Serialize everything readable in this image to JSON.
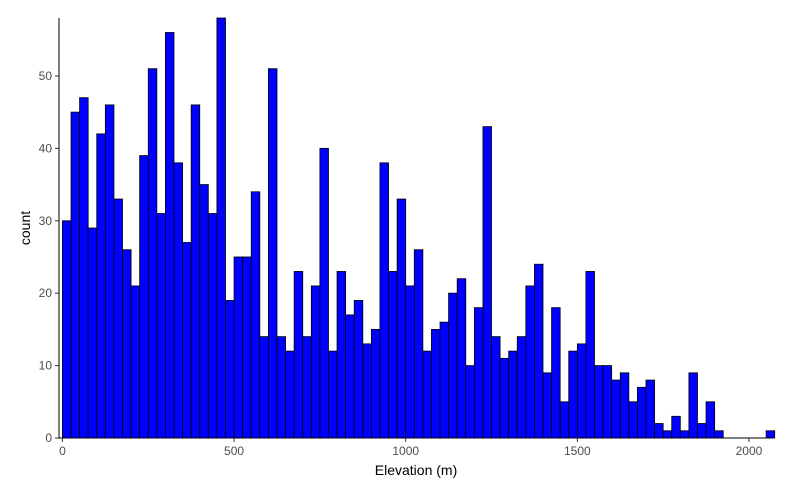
{
  "chart_data": {
    "type": "bar",
    "xlabel": "Elevation (m)",
    "ylabel": "count",
    "bin_width": 25,
    "bins_start": 0,
    "xlim": [
      -10,
      2070
    ],
    "ylim": [
      0,
      58
    ],
    "x_ticks": [
      0,
      500,
      1000,
      1500,
      2000
    ],
    "y_ticks": [
      0,
      10,
      20,
      30,
      40,
      50
    ],
    "grid": false,
    "legend": "none",
    "bar_fill": "#0000ff",
    "bar_stroke": "#000000",
    "values": [
      30,
      45,
      47,
      29,
      42,
      46,
      33,
      26,
      21,
      39,
      51,
      31,
      56,
      38,
      27,
      46,
      35,
      31,
      58,
      19,
      25,
      25,
      34,
      14,
      51,
      14,
      12,
      23,
      14,
      21,
      40,
      12,
      23,
      17,
      19,
      13,
      15,
      38,
      23,
      33,
      21,
      26,
      12,
      15,
      16,
      20,
      22,
      10,
      18,
      43,
      14,
      11,
      12,
      14,
      21,
      24,
      9,
      18,
      5,
      12,
      13,
      23,
      10,
      10,
      8,
      9,
      5,
      7,
      8,
      2,
      1,
      3,
      1,
      9,
      2,
      5,
      1,
      0,
      0,
      0,
      0,
      0,
      1
    ]
  }
}
